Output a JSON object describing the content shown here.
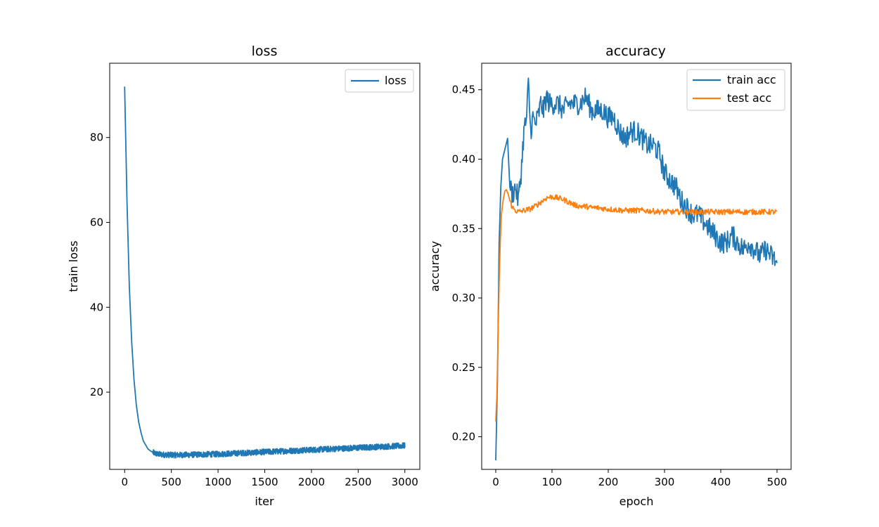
{
  "chart_data": [
    {
      "type": "line",
      "title": "loss",
      "xlabel": "iter",
      "ylabel": "train loss",
      "xlim": [
        -160,
        3160
      ],
      "ylim": [
        1.8,
        97.5
      ],
      "xticks": [
        "0",
        "500",
        "1000",
        "1500",
        "2000",
        "2500",
        "3000"
      ],
      "yticks": [
        "20",
        "40",
        "60",
        "80"
      ],
      "legend": "upper right",
      "grid": false,
      "series": [
        {
          "name": "loss",
          "color": "#1f77b4",
          "x": [
            0,
            25,
            50,
            75,
            100,
            125,
            150,
            175,
            200,
            250,
            300,
            350,
            400,
            500,
            600,
            700,
            800,
            1000,
            1200,
            1400,
            1600,
            1800,
            2000,
            2200,
            2400,
            2600,
            2800,
            3000
          ],
          "y": [
            92,
            65,
            45,
            32,
            23,
            17,
            13,
            10.5,
            8.5,
            6.6,
            5.8,
            5.4,
            5.3,
            5.2,
            5.2,
            5.25,
            5.3,
            5.4,
            5.6,
            5.8,
            6.0,
            6.2,
            6.4,
            6.6,
            6.8,
            7.0,
            7.2,
            7.4
          ],
          "noise_band": 0.7
        }
      ]
    },
    {
      "type": "line",
      "title": "accuracy",
      "xlabel": "epoch",
      "ylabel": "accuracy",
      "xlim": [
        -25,
        525
      ],
      "ylim": [
        0.1765,
        0.4691
      ],
      "xticks": [
        "0",
        "100",
        "200",
        "300",
        "400",
        "500"
      ],
      "yticks": [
        "0.20",
        "0.25",
        "0.30",
        "0.35",
        "0.40",
        "0.45"
      ],
      "legend": "upper right",
      "grid": false,
      "series": [
        {
          "name": "train acc",
          "color": "#1f77b4",
          "x": [
            0,
            3,
            6,
            9,
            12,
            15,
            18,
            21,
            25,
            30,
            35,
            40,
            45,
            50,
            55,
            58,
            62,
            66,
            70,
            75,
            80,
            85,
            90,
            95,
            100,
            110,
            120,
            130,
            140,
            150,
            160,
            170,
            180,
            190,
            200,
            210,
            220,
            230,
            240,
            250,
            260,
            270,
            280,
            290,
            300,
            310,
            320,
            330,
            340,
            350,
            360,
            370,
            380,
            390,
            400,
            410,
            420,
            430,
            440,
            450,
            460,
            470,
            480,
            490,
            500
          ],
          "y": [
            0.183,
            0.24,
            0.34,
            0.38,
            0.4,
            0.405,
            0.41,
            0.415,
            0.38,
            0.375,
            0.38,
            0.37,
            0.39,
            0.42,
            0.43,
            0.455,
            0.42,
            0.43,
            0.425,
            0.43,
            0.44,
            0.435,
            0.445,
            0.44,
            0.44,
            0.44,
            0.435,
            0.44,
            0.44,
            0.44,
            0.445,
            0.435,
            0.435,
            0.435,
            0.43,
            0.43,
            0.42,
            0.415,
            0.42,
            0.42,
            0.415,
            0.41,
            0.41,
            0.405,
            0.39,
            0.385,
            0.38,
            0.37,
            0.365,
            0.36,
            0.36,
            0.355,
            0.35,
            0.345,
            0.34,
            0.34,
            0.345,
            0.34,
            0.335,
            0.34,
            0.335,
            0.33,
            0.335,
            0.33,
            0.325
          ],
          "noise_band": 0.008
        },
        {
          "name": "test acc",
          "color": "#ff7f0e",
          "x": [
            0,
            2,
            4,
            6,
            8,
            10,
            13,
            16,
            19,
            22,
            25,
            30,
            35,
            40,
            50,
            60,
            70,
            80,
            90,
            100,
            110,
            120,
            130,
            140,
            150,
            160,
            170,
            180,
            200,
            230,
            260,
            300,
            340,
            380,
            420,
            460,
            500
          ],
          "y": [
            0.211,
            0.23,
            0.27,
            0.31,
            0.34,
            0.36,
            0.37,
            0.377,
            0.378,
            0.375,
            0.37,
            0.365,
            0.363,
            0.362,
            0.363,
            0.364,
            0.366,
            0.369,
            0.372,
            0.373,
            0.372,
            0.371,
            0.369,
            0.367,
            0.366,
            0.366,
            0.365,
            0.365,
            0.364,
            0.363,
            0.363,
            0.362,
            0.362,
            0.362,
            0.362,
            0.362,
            0.362
          ],
          "noise_band": 0.002
        }
      ]
    }
  ]
}
